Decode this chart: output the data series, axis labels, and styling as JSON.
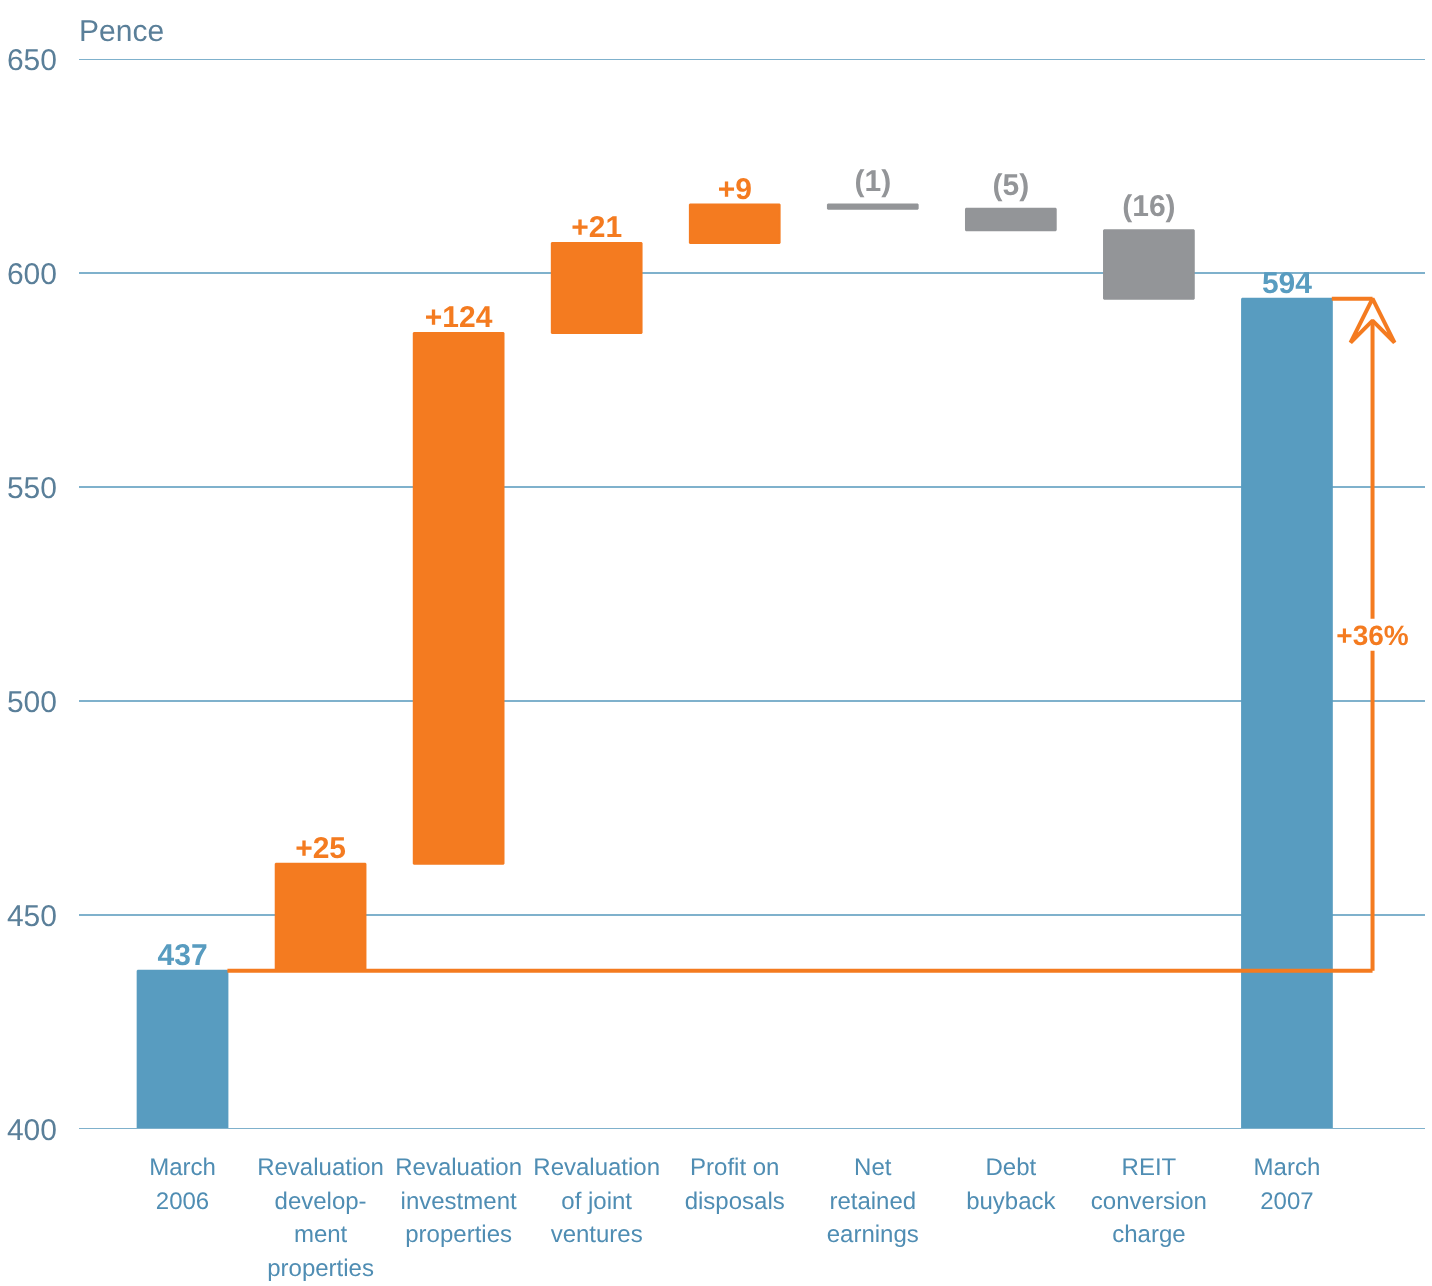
{
  "chart_data": {
    "type": "bar",
    "ylabel": "Pence",
    "categories": [
      "March\n2006",
      "Revaluation\ndevelop-\nment\nproperties",
      "Revaluation\ninvestment\nproperties",
      "Revaluation\nof joint\nventures",
      "Profit on\ndisposals",
      "Net\nretained\nearnings",
      "Debt\nbuyback",
      "REIT\nconversion\ncharge",
      "March\n2007"
    ],
    "values": [
      437,
      25,
      124,
      21,
      9,
      -1,
      -5,
      -16,
      594
    ],
    "base": [
      null,
      437,
      462,
      586,
      607,
      616,
      615,
      610,
      null
    ],
    "colors": [
      "#589cc0",
      "#f47b20",
      "#f47b20",
      "#f47b20",
      "#f47b20",
      "#939598",
      "#939598",
      "#939598",
      "#589cc0"
    ],
    "value_labels": [
      "437",
      "+25",
      "+124",
      "+21",
      "+9",
      "(1)",
      "(5)",
      "(16)",
      "594"
    ],
    "annotations": [
      "+36%"
    ],
    "ref_lines": [
      {
        "axis": "y",
        "value": 437,
        "color": "#f47b20"
      }
    ],
    "ylim": [
      400,
      650
    ],
    "yticks": [
      400,
      450,
      500,
      550,
      600,
      650
    ],
    "grid": "y"
  }
}
